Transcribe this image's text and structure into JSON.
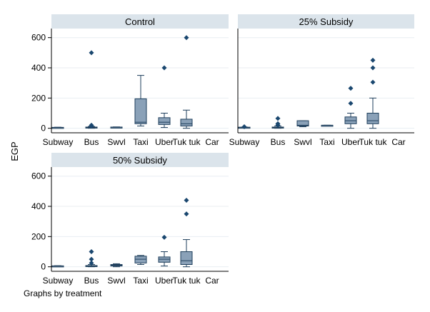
{
  "chart_data": {
    "type": "boxplot",
    "ylabel": "EGP",
    "note": "Graphs by treatment",
    "categories": [
      "Subway",
      "Bus",
      "Swvl",
      "Taxi",
      "Uber",
      "Tuk tuk",
      "Car"
    ],
    "y_ticks": [
      0,
      200,
      400,
      600
    ],
    "ylim": [
      -30,
      660
    ],
    "grid": true,
    "colors": {
      "box": "#8aa1b8",
      "line": "#1f3f5c",
      "outlier": "#1a476f",
      "header": "#dbe4eb"
    },
    "panels": [
      {
        "title": "Control",
        "boxes": [
          {
            "category": "Subway",
            "min": 3,
            "q1": 4,
            "median": 5,
            "q3": 6,
            "max": 7,
            "outliers": []
          },
          {
            "category": "Bus",
            "min": 0,
            "q1": 2,
            "median": 5,
            "q3": 8,
            "max": 12,
            "outliers": [
              15,
              20,
              500
            ]
          },
          {
            "category": "Swvl",
            "min": 5,
            "q1": 6,
            "median": 7,
            "q3": 8,
            "max": 9,
            "outliers": []
          },
          {
            "category": "Taxi",
            "min": 15,
            "q1": 30,
            "median": 40,
            "q3": 195,
            "max": 350,
            "outliers": []
          },
          {
            "category": "Uber",
            "min": 5,
            "q1": 25,
            "median": 40,
            "q3": 70,
            "max": 100,
            "outliers": [
              400
            ]
          },
          {
            "category": "Tuk tuk",
            "min": 0,
            "q1": 15,
            "median": 30,
            "q3": 60,
            "max": 120,
            "outliers": [
              600
            ]
          },
          {
            "category": "Car",
            "empty": true
          }
        ]
      },
      {
        "title": "25% Subsidy",
        "boxes": [
          {
            "category": "Subway",
            "min": 3,
            "q1": 5,
            "median": 6,
            "q3": 7,
            "max": 8,
            "outliers": [
              10
            ]
          },
          {
            "category": "Bus",
            "min": 0,
            "q1": 2,
            "median": 5,
            "q3": 8,
            "max": 15,
            "outliers": [
              20,
              30,
              65
            ]
          },
          {
            "category": "Swvl",
            "min": 10,
            "q1": 15,
            "median": 20,
            "q3": 50,
            "max": 50,
            "outliers": []
          },
          {
            "category": "Taxi",
            "min": 20,
            "q1": 20,
            "median": 20,
            "q3": 20,
            "max": 20,
            "outliers": []
          },
          {
            "category": "Uber",
            "min": 0,
            "q1": 30,
            "median": 50,
            "q3": 75,
            "max": 100,
            "outliers": [
              165,
              265
            ]
          },
          {
            "category": "Tuk tuk",
            "min": 0,
            "q1": 30,
            "median": 50,
            "q3": 100,
            "max": 200,
            "outliers": [
              305,
              400,
              450
            ]
          },
          {
            "category": "Car",
            "empty": true
          }
        ]
      },
      {
        "title": "50% Subsidy",
        "boxes": [
          {
            "category": "Subway",
            "min": 3,
            "q1": 4,
            "median": 5,
            "q3": 6,
            "max": 7,
            "outliers": []
          },
          {
            "category": "Bus",
            "min": 0,
            "q1": 2,
            "median": 5,
            "q3": 8,
            "max": 15,
            "outliers": [
              25,
              50,
              100
            ]
          },
          {
            "category": "Swvl",
            "min": 0,
            "q1": 5,
            "median": 10,
            "q3": 15,
            "max": 20,
            "outliers": []
          },
          {
            "category": "Taxi",
            "min": 15,
            "q1": 25,
            "median": 50,
            "q3": 70,
            "max": 75,
            "outliers": []
          },
          {
            "category": "Uber",
            "min": 5,
            "q1": 30,
            "median": 50,
            "q3": 65,
            "max": 100,
            "outliers": [
              195
            ]
          },
          {
            "category": "Tuk tuk",
            "min": 0,
            "q1": 15,
            "median": 40,
            "q3": 100,
            "max": 180,
            "outliers": [
              350,
              440
            ]
          },
          {
            "category": "Car",
            "empty": true
          }
        ]
      }
    ]
  }
}
